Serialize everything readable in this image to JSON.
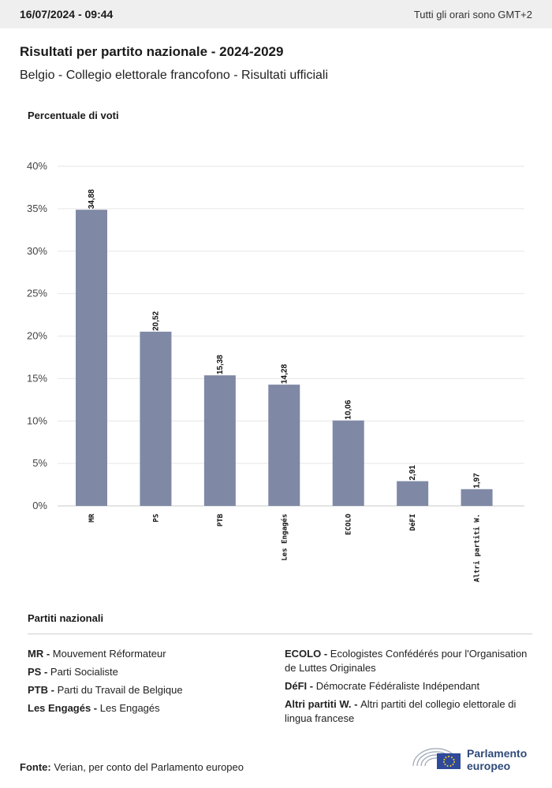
{
  "header": {
    "timestamp": "16/07/2024 - 09:44",
    "timezone": "Tutti gli orari sono GMT+2"
  },
  "title": "Risultati per partito nazionale - 2024-2029",
  "subtitle": "Belgio - Collegio elettorale francofono - Risultati ufficiali",
  "chart_data": {
    "type": "bar",
    "ylabel": "Percentuale di voti",
    "xlabel": "",
    "categories": [
      "MR",
      "PS",
      "PTB",
      "Les Engagés",
      "ECOLO",
      "DéFI",
      "Altri partiti W."
    ],
    "values": [
      34.88,
      20.52,
      15.38,
      14.28,
      10.06,
      2.91,
      1.97
    ],
    "value_labels": [
      "34,88",
      "20,52",
      "15,38",
      "14,28",
      "10,06",
      "2,91",
      "1,97"
    ],
    "ylim": [
      0,
      40
    ],
    "yticks": [
      "0%",
      "5%",
      "10%",
      "15%",
      "20%",
      "25%",
      "30%",
      "35%",
      "40%"
    ],
    "grid": true,
    "bar_color": "#7f89a6"
  },
  "legend": {
    "title": "Partiti nazionali",
    "left": [
      {
        "abbr": "MR - ",
        "name": "Mouvement Réformateur"
      },
      {
        "abbr": "PS - ",
        "name": "Parti Socialiste"
      },
      {
        "abbr": "PTB - ",
        "name": "Parti du Travail de Belgique"
      },
      {
        "abbr": "Les Engagés - ",
        "name": "Les Engagés"
      }
    ],
    "right": [
      {
        "abbr": "ECOLO - ",
        "name": "Ecologistes Confédérés pour l'Organisation de Luttes Originales"
      },
      {
        "abbr": "DéFI - ",
        "name": "Démocrate Fédéraliste Indépendant"
      },
      {
        "abbr": "Altri partiti W. - ",
        "name": "Altri partiti del collegio elettorale di lingua francese"
      }
    ]
  },
  "source": {
    "label": "Fonte:",
    "text": " Verian, per conto del Parlamento europeo"
  },
  "logo": {
    "line1": "Parlamento",
    "line2": "europeo",
    "color": "#2f4a7a"
  }
}
